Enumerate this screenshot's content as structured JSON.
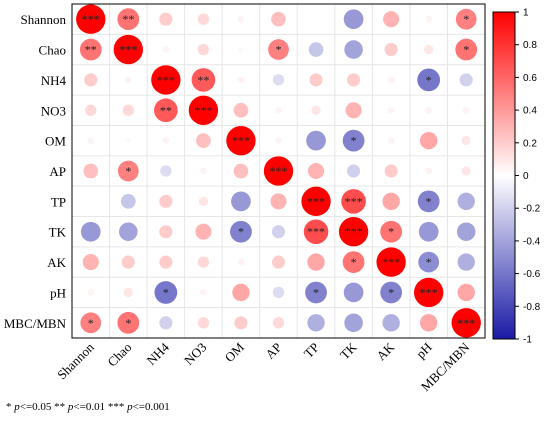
{
  "chart_data": {
    "type": "heatmap",
    "variables": [
      "Shannon",
      "Chao",
      "NH4",
      "NO3",
      "OM",
      "AP",
      "TP",
      "TK",
      "AK",
      "pH",
      "MBC/MBN"
    ],
    "matrix": [
      [
        1.0,
        0.55,
        0.2,
        0.15,
        0.05,
        0.25,
        0.0,
        -0.45,
        0.3,
        0.05,
        0.5
      ],
      [
        0.55,
        1.0,
        0.05,
        0.15,
        0.03,
        0.5,
        -0.25,
        -0.4,
        0.2,
        0.1,
        0.55
      ],
      [
        0.2,
        0.05,
        1.0,
        0.65,
        0.05,
        -0.15,
        0.2,
        0.2,
        0.05,
        -0.6,
        -0.2
      ],
      [
        0.15,
        0.15,
        0.65,
        1.0,
        0.25,
        0.05,
        0.1,
        0.3,
        0.05,
        0.05,
        0.05
      ],
      [
        0.05,
        0.03,
        0.05,
        0.25,
        1.0,
        0.05,
        -0.45,
        -0.55,
        0.05,
        0.35,
        0.1
      ],
      [
        0.25,
        0.5,
        -0.15,
        0.05,
        0.25,
        1.0,
        0.3,
        -0.2,
        0.2,
        0.05,
        0.1
      ],
      [
        0.0,
        -0.25,
        0.2,
        0.1,
        -0.45,
        0.3,
        1.0,
        0.7,
        0.35,
        -0.55,
        -0.35
      ],
      [
        -0.45,
        -0.4,
        0.2,
        0.3,
        -0.55,
        -0.2,
        0.7,
        1.0,
        0.55,
        -0.45,
        -0.4
      ],
      [
        0.3,
        0.2,
        0.2,
        0.15,
        0.05,
        0.2,
        0.35,
        0.55,
        1.0,
        -0.5,
        -0.35
      ],
      [
        0.05,
        0.1,
        -0.6,
        0.05,
        0.35,
        -0.15,
        -0.55,
        -0.45,
        -0.55,
        1.0,
        0.35
      ],
      [
        0.5,
        0.55,
        -0.2,
        0.15,
        0.2,
        0.15,
        -0.35,
        -0.4,
        -0.35,
        0.35,
        1.0
      ]
    ],
    "significance": [
      [
        "***",
        "**",
        "",
        "",
        "",
        "",
        "",
        "",
        "",
        "",
        "*"
      ],
      [
        "**",
        "***",
        "",
        "",
        "",
        "*",
        "",
        "",
        "",
        "",
        "*"
      ],
      [
        "",
        "",
        "***",
        "**",
        "",
        "",
        "",
        "",
        "",
        "*",
        ""
      ],
      [
        "",
        "",
        "**",
        "***",
        "",
        "",
        "",
        "",
        "",
        "",
        ""
      ],
      [
        "",
        "",
        "",
        "",
        "***",
        "",
        "",
        "*",
        "",
        "",
        ""
      ],
      [
        "",
        "*",
        "",
        "",
        "",
        "***",
        "",
        "",
        "",
        "",
        ""
      ],
      [
        "",
        "",
        "",
        "",
        "",
        "",
        "***",
        "***",
        "",
        "*",
        ""
      ],
      [
        "",
        "",
        "",
        "",
        "*",
        "",
        "***",
        "***",
        "*",
        "",
        ""
      ],
      [
        "",
        "",
        "",
        "",
        "",
        "",
        "",
        "*",
        "***",
        "*",
        ""
      ],
      [
        "",
        "",
        "*",
        "",
        "",
        "",
        "*",
        "",
        "*",
        "***",
        ""
      ],
      [
        "*",
        "*",
        "",
        "",
        "",
        "",
        "",
        "",
        "",
        "",
        "***"
      ]
    ],
    "colorbar": {
      "min": -1,
      "max": 1,
      "ticks": [
        -1,
        -0.8,
        -0.6,
        -0.4,
        -0.2,
        0,
        0.2,
        0.4,
        0.6,
        0.8,
        1
      ]
    },
    "colors": {
      "negative": "#1a1aa6",
      "neutral": "#ffffff",
      "positive": "#ff0000"
    },
    "grid": true
  },
  "legend_note": {
    "s1": "* ",
    "p1": "p",
    "t1": "<=0.05  ** ",
    "p2": "p",
    "t2": "<=0.01  *** ",
    "p3": "p",
    "t3": "<=0.001"
  }
}
